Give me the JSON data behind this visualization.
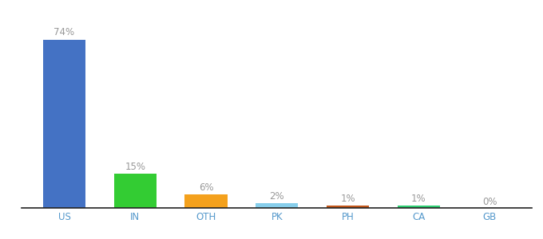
{
  "categories": [
    "US",
    "IN",
    "OTH",
    "PK",
    "PH",
    "CA",
    "GB"
  ],
  "values": [
    74,
    15,
    6,
    2,
    1,
    1,
    0
  ],
  "bar_colors": [
    "#4472c4",
    "#33cc33",
    "#f4a11d",
    "#87ceeb",
    "#c0561a",
    "#2ecc71",
    "#c8c8c8"
  ],
  "value_labels": [
    "74%",
    "15%",
    "6%",
    "2%",
    "1%",
    "1%",
    "0%"
  ],
  "ylim": [
    0,
    84
  ],
  "background_color": "#ffffff",
  "label_color": "#999999",
  "label_fontsize": 8.5,
  "tick_fontsize": 8.5,
  "tick_color": "#5599cc",
  "bar_width": 0.6
}
